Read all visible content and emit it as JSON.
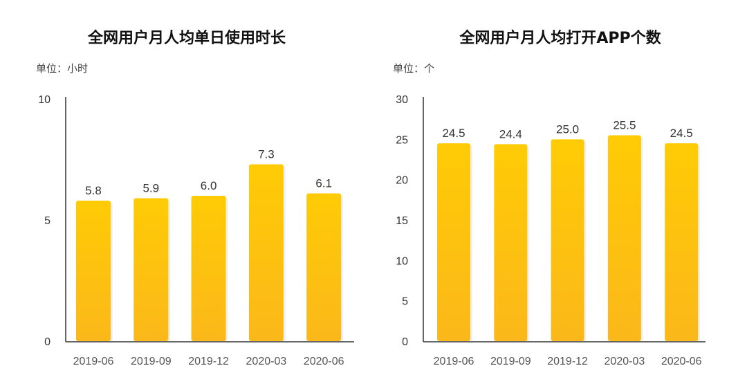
{
  "colors": {
    "bar_top": "#FFCB05",
    "bar_bottom": "#FBB81A",
    "axis": "#333333"
  },
  "chart_data": [
    {
      "type": "bar",
      "title": "全网用户月人均单日使用时长",
      "unit_label": "单位：小时",
      "categories": [
        "2019-06",
        "2019-09",
        "2019-12",
        "2020-03",
        "2020-06"
      ],
      "values": [
        5.8,
        5.9,
        6.0,
        7.3,
        6.1
      ],
      "value_labels": [
        "5.8",
        "5.9",
        "6.0",
        "7.3",
        "6.1"
      ],
      "yticks": [
        "0",
        "5",
        "10"
      ],
      "ytick_values": [
        0,
        5,
        10
      ],
      "ylim": [
        0,
        10
      ],
      "grid": false
    },
    {
      "type": "bar",
      "title": "全网用户月人均打开APP个数",
      "unit_label": "单位：个",
      "categories": [
        "2019-06",
        "2019-09",
        "2019-12",
        "2020-03",
        "2020-06"
      ],
      "values": [
        24.5,
        24.4,
        25.0,
        25.5,
        24.5
      ],
      "value_labels": [
        "24.5",
        "24.4",
        "25.0",
        "25.5",
        "24.5"
      ],
      "yticks": [
        "0",
        "5",
        "10",
        "15",
        "20",
        "25",
        "30"
      ],
      "ytick_values": [
        0,
        5,
        10,
        15,
        20,
        25,
        30
      ],
      "ylim": [
        0,
        30
      ],
      "grid": false
    }
  ]
}
